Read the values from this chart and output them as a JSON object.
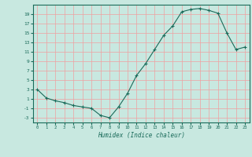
{
  "x": [
    0,
    1,
    2,
    3,
    4,
    5,
    6,
    7,
    8,
    9,
    10,
    11,
    12,
    13,
    14,
    15,
    16,
    17,
    18,
    19,
    20,
    21,
    22,
    23
  ],
  "y": [
    3,
    1.2,
    0.6,
    0.2,
    -0.4,
    -0.7,
    -1.0,
    -2.5,
    -3.0,
    -0.7,
    2.2,
    6.0,
    8.5,
    11.5,
    14.5,
    16.5,
    19.5,
    20.0,
    20.2,
    19.8,
    19.2,
    15.0,
    11.5,
    12.0
  ],
  "line_color": "#1a6b5a",
  "marker": "+",
  "bg_color": "#c8e8e0",
  "grid_color": "#f0a0a0",
  "xlabel": "Humidex (Indice chaleur)",
  "yticks": [
    -3,
    -1,
    1,
    3,
    5,
    7,
    9,
    11,
    13,
    15,
    17,
    19
  ],
  "ylim": [
    -4,
    21
  ],
  "xlim": [
    -0.5,
    23.5
  ],
  "xticks": [
    0,
    1,
    2,
    3,
    4,
    5,
    6,
    7,
    8,
    9,
    10,
    11,
    12,
    13,
    14,
    15,
    16,
    17,
    18,
    19,
    20,
    21,
    22,
    23
  ]
}
